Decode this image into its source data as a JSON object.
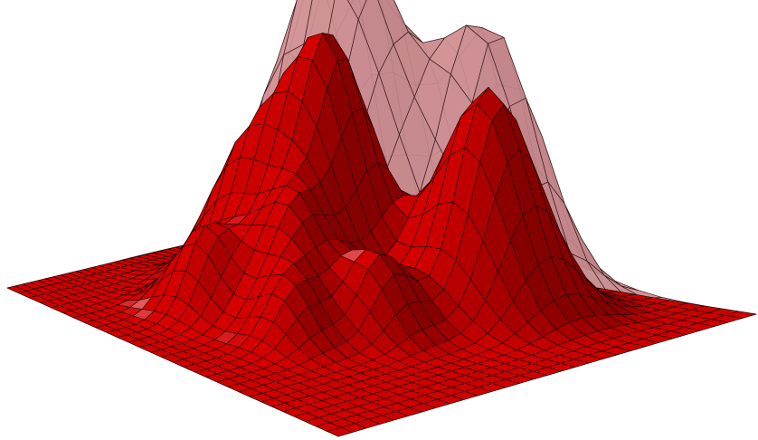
{
  "scene": {
    "background_color": "#ffffff",
    "front_surface": {
      "shape": "solid surface with peaks",
      "fill_color": "#d40000",
      "shadow_color": "#5a0000",
      "highlight_color": "#ffffff",
      "mesh_line_color": "#1a0000"
    },
    "back_surface": {
      "shape": "semi-transparent surface with peaks",
      "fill_color": "#d9999c",
      "mesh_line_color": "#3a1a1c"
    }
  }
}
